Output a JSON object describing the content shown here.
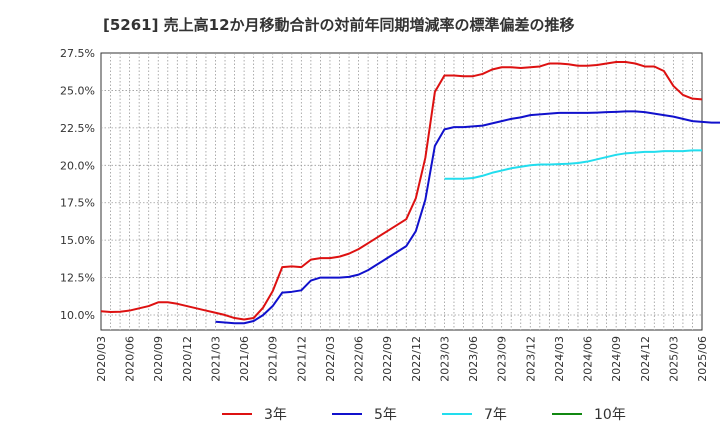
{
  "chart_data": {
    "type": "line",
    "title": "[5261]  売上高12か月移動合計の対前年同期増減率の標準偏差の推移",
    "xlabel": "",
    "ylabel": "",
    "ylim": [
      9.0,
      27.5
    ],
    "y_ticks": [
      10.0,
      12.5,
      15.0,
      17.5,
      20.0,
      22.5,
      25.0,
      27.5
    ],
    "y_tick_labels": [
      "10.0%",
      "12.5%",
      "15.0%",
      "17.5%",
      "20.0%",
      "22.5%",
      "25.0%",
      "27.5%"
    ],
    "x_tick_labels": [
      "2020/03",
      "2020/06",
      "2020/09",
      "2020/12",
      "2021/03",
      "2021/06",
      "2021/09",
      "2021/12",
      "2022/03",
      "2022/06",
      "2022/09",
      "2022/12",
      "2023/03",
      "2023/06",
      "2023/09",
      "2023/12",
      "2024/03",
      "2024/06",
      "2024/09",
      "2024/12",
      "2025/03",
      "2025/06"
    ],
    "x_start": "2020/03",
    "grid": true,
    "series": [
      {
        "name": "3年",
        "color": "#dd1111",
        "start_index": 0,
        "values": [
          10.25,
          10.2,
          10.22,
          10.3,
          10.45,
          10.6,
          10.85,
          10.85,
          10.75,
          10.6,
          10.45,
          10.3,
          10.15,
          10.0,
          9.8,
          9.7,
          9.8,
          10.5,
          11.6,
          13.2,
          13.25,
          13.2,
          13.7,
          13.8,
          13.8,
          13.9,
          14.1,
          14.4,
          14.8,
          15.2,
          15.6,
          16.0,
          16.4,
          17.8,
          20.5,
          24.9,
          26.0,
          26.0,
          25.95,
          25.95,
          26.1,
          26.4,
          26.55,
          26.55,
          26.5,
          26.55,
          26.6,
          26.8,
          26.8,
          26.75,
          26.65,
          26.65,
          26.7,
          26.8,
          26.9,
          26.9,
          26.8,
          26.6,
          26.6,
          26.3,
          25.3,
          24.7,
          24.45,
          24.4
        ]
      },
      {
        "name": "5年",
        "color": "#1111cc",
        "start_index": 12,
        "values": [
          9.55,
          9.5,
          9.45,
          9.45,
          9.6,
          10.0,
          10.6,
          11.5,
          11.55,
          11.65,
          12.3,
          12.5,
          12.5,
          12.5,
          12.55,
          12.7,
          13.0,
          13.4,
          13.8,
          14.2,
          14.6,
          15.6,
          17.7,
          21.3,
          22.4,
          22.55,
          22.55,
          22.6,
          22.65,
          22.8,
          22.95,
          23.1,
          23.2,
          23.35,
          23.4,
          23.45,
          23.5,
          23.5,
          23.5,
          23.5,
          23.52,
          23.55,
          23.57,
          23.6,
          23.6,
          23.55,
          23.45,
          23.35,
          23.25,
          23.1,
          22.95,
          22.9,
          22.85,
          22.85
        ]
      },
      {
        "name": "7年",
        "color": "#22ddee",
        "start_index": 36,
        "values": [
          19.1,
          19.1,
          19.1,
          19.15,
          19.3,
          19.5,
          19.65,
          19.8,
          19.9,
          20.0,
          20.05,
          20.05,
          20.08,
          20.1,
          20.15,
          20.25,
          20.4,
          20.55,
          20.7,
          20.8,
          20.85,
          20.9,
          20.9,
          20.95,
          20.95,
          20.95,
          21.0,
          21.0
        ]
      },
      {
        "name": "10年",
        "color": "#118811",
        "start_index": 0,
        "values": []
      }
    ]
  }
}
